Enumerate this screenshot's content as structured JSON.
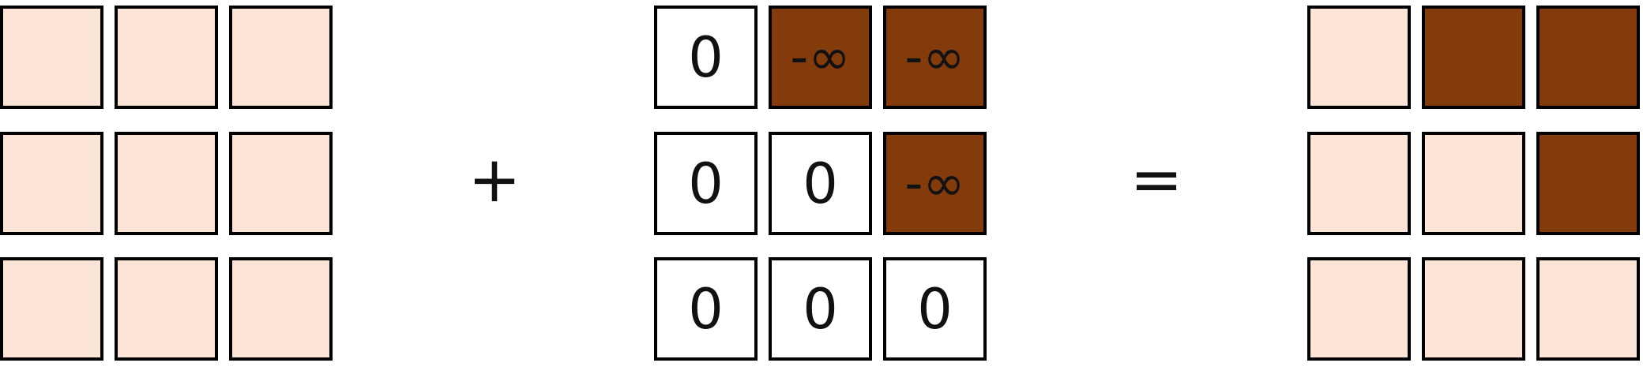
{
  "colors": {
    "light": "#fce5d6",
    "dark": "#843b0c",
    "white": "#ffffff",
    "border": "#000000"
  },
  "operators": {
    "plus": "+",
    "equals": "="
  },
  "left_matrix": {
    "rows": [
      [
        "",
        "",
        ""
      ],
      [
        "",
        "",
        ""
      ],
      [
        "",
        "",
        ""
      ]
    ],
    "fills": [
      [
        "light",
        "light",
        "light"
      ],
      [
        "light",
        "light",
        "light"
      ],
      [
        "light",
        "light",
        "light"
      ]
    ]
  },
  "mask_matrix": {
    "rows": [
      [
        "0",
        "-∞",
        "-∞"
      ],
      [
        "0",
        "0",
        "-∞"
      ],
      [
        "0",
        "0",
        "0"
      ]
    ],
    "fills": [
      [
        "white",
        "dark",
        "dark"
      ],
      [
        "white",
        "white",
        "dark"
      ],
      [
        "white",
        "white",
        "white"
      ]
    ]
  },
  "result_matrix": {
    "rows": [
      [
        "",
        "",
        ""
      ],
      [
        "",
        "",
        ""
      ],
      [
        "",
        "",
        ""
      ]
    ],
    "fills": [
      [
        "light",
        "dark",
        "dark"
      ],
      [
        "light",
        "light",
        "dark"
      ],
      [
        "light",
        "light",
        "light"
      ]
    ]
  }
}
